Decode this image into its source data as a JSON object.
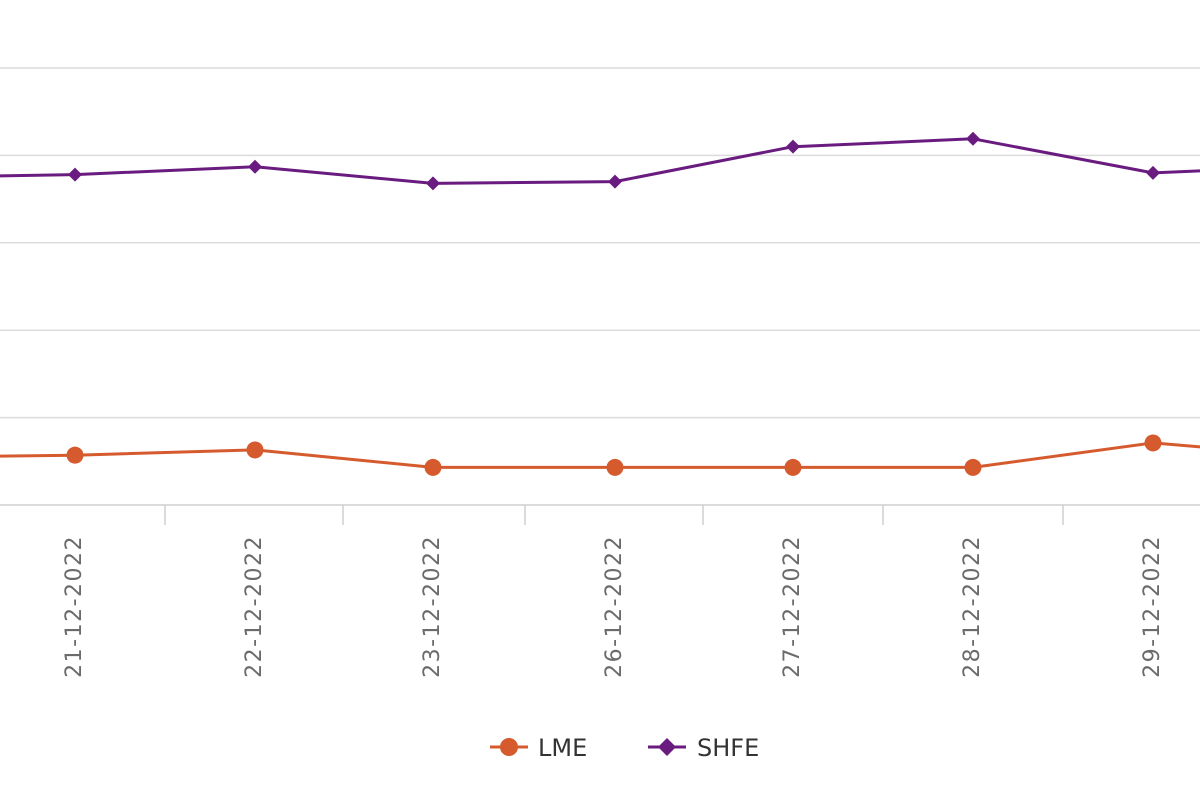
{
  "chart_data": {
    "type": "line",
    "categories": [
      "21-12-2022",
      "22-12-2022",
      "23-12-2022",
      "26-12-2022",
      "27-12-2022",
      "28-12-2022",
      "29-12-2022"
    ],
    "series": [
      {
        "name": "LME",
        "values": [
          0.57,
          0.63,
          0.43,
          0.43,
          0.43,
          0.43,
          0.71
        ],
        "color": "#d55b2e",
        "marker": "circle"
      },
      {
        "name": "SHFE",
        "values": [
          3.78,
          3.87,
          3.68,
          3.7,
          4.1,
          4.19,
          3.8
        ],
        "color": "#6a1b7f",
        "marker": "diamond"
      }
    ],
    "ylim": [
      0,
      5
    ],
    "y_gridlines": [
      0,
      1,
      2,
      3,
      4,
      5
    ],
    "grid": true,
    "title": "",
    "xlabel": "",
    "ylabel": "",
    "legend_position": "bottom-center"
  },
  "legend": {
    "items": [
      {
        "label": "LME",
        "color": "#d55b2e",
        "marker": "circle-icon"
      },
      {
        "label": "SHFE",
        "color": "#6a1b7f",
        "marker": "diamond-icon"
      }
    ]
  }
}
